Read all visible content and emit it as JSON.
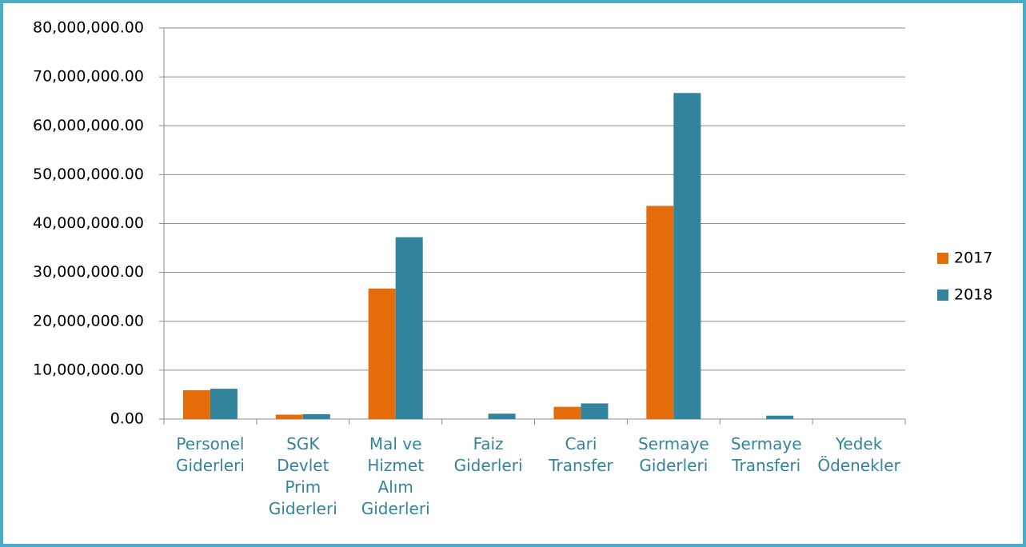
{
  "chart_data": {
    "type": "bar",
    "categories": [
      "Personel Giderleri",
      "SGK Devlet Prim Giderleri",
      "Mal ve Hizmet Alım Giderleri",
      "Faiz Giderleri",
      "Cari Transfer",
      "Sermaye Giderleri",
      "Sermaye Transferi",
      "Yedek Ödenekler"
    ],
    "series": [
      {
        "name": "2017",
        "color": "#e46c0a",
        "values": [
          5900000,
          900000,
          26700000,
          0,
          2500000,
          43600000,
          0,
          0
        ]
      },
      {
        "name": "2018",
        "color": "#31849b",
        "values": [
          6200000,
          1000000,
          37200000,
          1100000,
          3200000,
          66700000,
          700000,
          0
        ]
      }
    ],
    "ylim": [
      0,
      80000000
    ],
    "yticks": [
      {
        "value": 0,
        "label": "0.00"
      },
      {
        "value": 10000000,
        "label": "10,000,000.00"
      },
      {
        "value": 20000000,
        "label": "20,000,000.00"
      },
      {
        "value": 30000000,
        "label": "30,000,000.00"
      },
      {
        "value": 40000000,
        "label": "40,000,000.00"
      },
      {
        "value": 50000000,
        "label": "50,000,000.00"
      },
      {
        "value": 60000000,
        "label": "60,000,000.00"
      },
      {
        "value": 70000000,
        "label": "70,000,000.00"
      },
      {
        "value": 80000000,
        "label": "80,000,000.00"
      }
    ],
    "grid": true,
    "legend": "right"
  }
}
